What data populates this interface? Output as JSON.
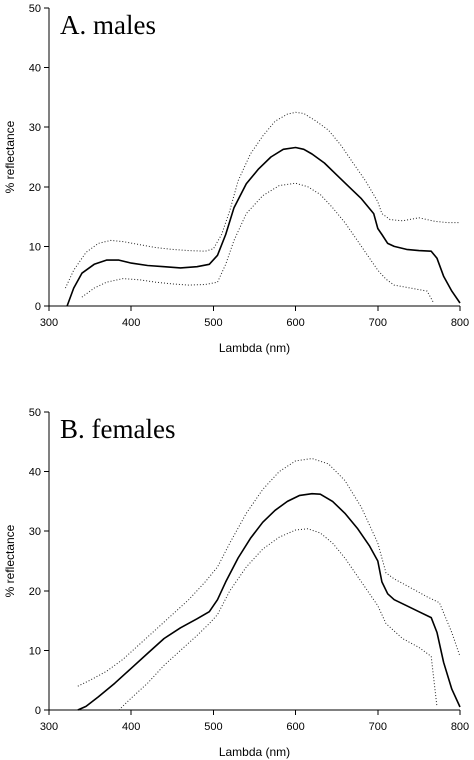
{
  "chart_data": [
    {
      "type": "line",
      "title": "A. males",
      "xlabel": "Lambda (nm)",
      "ylabel": "% reflectance",
      "xlim": [
        300,
        800
      ],
      "ylim": [
        0,
        50
      ],
      "xticks": [
        300,
        400,
        500,
        600,
        700,
        800
      ],
      "yticks": [
        0,
        10,
        20,
        30,
        40,
        50
      ],
      "grid": false,
      "legend": "none",
      "series": [
        {
          "role": "upper",
          "style": "dotted",
          "x": [
            320,
            330,
            345,
            360,
            375,
            390,
            410,
            430,
            450,
            470,
            490,
            500,
            510,
            520,
            530,
            545,
            560,
            575,
            590,
            600,
            610,
            625,
            640,
            655,
            670,
            685,
            700,
            705,
            715,
            730,
            750,
            770,
            785,
            800
          ],
          "y": [
            3,
            6,
            9,
            10.5,
            11,
            10.8,
            10.3,
            9.8,
            9.5,
            9.3,
            9.2,
            9.6,
            12,
            16,
            21,
            25.5,
            28.5,
            31,
            32.2,
            32.5,
            32.3,
            31,
            29.5,
            27,
            24,
            21,
            17.5,
            15.5,
            14.5,
            14.3,
            14.8,
            14.2,
            14,
            14
          ]
        },
        {
          "role": "mean",
          "style": "solid",
          "x": [
            322,
            330,
            340,
            355,
            370,
            385,
            400,
            420,
            440,
            460,
            480,
            495,
            505,
            515,
            525,
            540,
            555,
            570,
            585,
            600,
            610,
            620,
            635,
            650,
            665,
            680,
            695,
            700,
            705,
            712,
            720,
            735,
            750,
            765,
            772,
            780,
            790,
            800
          ],
          "y": [
            0,
            3,
            5.5,
            7,
            7.7,
            7.7,
            7.2,
            6.8,
            6.6,
            6.4,
            6.6,
            7,
            8.5,
            12,
            16.5,
            20.5,
            23,
            25,
            26.3,
            26.6,
            26.3,
            25.5,
            24,
            22,
            20,
            18,
            15.5,
            13,
            12,
            10.5,
            10,
            9.5,
            9.3,
            9.2,
            8,
            5,
            2.5,
            0.5
          ]
        },
        {
          "role": "lower",
          "style": "dotted",
          "x": [
            340,
            355,
            370,
            390,
            410,
            430,
            450,
            470,
            490,
            505,
            515,
            525,
            540,
            560,
            580,
            600,
            615,
            630,
            645,
            660,
            675,
            690,
            700,
            710,
            720,
            740,
            760,
            768
          ],
          "y": [
            1.5,
            3,
            4,
            4.6,
            4.4,
            4,
            3.7,
            3.5,
            3.6,
            4,
            7,
            11,
            15.5,
            18.5,
            20.2,
            20.6,
            20,
            18.7,
            16.5,
            14,
            11,
            8,
            6,
            4.5,
            3.5,
            3,
            2.5,
            0.5
          ]
        }
      ]
    },
    {
      "type": "line",
      "title": "B. females",
      "xlabel": "Lambda (nm)",
      "ylabel": "% reflectance",
      "xlim": [
        300,
        800
      ],
      "ylim": [
        0,
        50
      ],
      "xticks": [
        300,
        400,
        500,
        600,
        700,
        800
      ],
      "yticks": [
        0,
        10,
        20,
        30,
        40,
        50
      ],
      "grid": false,
      "legend": "none",
      "series": [
        {
          "role": "upper",
          "style": "dotted",
          "x": [
            335,
            350,
            370,
            390,
            410,
            430,
            450,
            470,
            490,
            505,
            520,
            540,
            560,
            580,
            600,
            620,
            640,
            660,
            680,
            700,
            710,
            720,
            740,
            760,
            775,
            790,
            800
          ],
          "y": [
            4,
            5,
            6.5,
            8.5,
            11,
            13.5,
            16,
            18.5,
            21.5,
            24,
            28,
            33,
            37,
            40,
            41.8,
            42.2,
            41.3,
            38.5,
            34,
            28,
            23,
            22,
            20.5,
            19,
            18,
            13,
            9
          ]
        },
        {
          "role": "mean",
          "style": "solid",
          "x": [
            335,
            345,
            360,
            380,
            400,
            420,
            440,
            460,
            480,
            495,
            505,
            515,
            530,
            545,
            560,
            575,
            590,
            605,
            620,
            630,
            645,
            660,
            675,
            690,
            700,
            705,
            712,
            720,
            735,
            750,
            765,
            772,
            780,
            790,
            800
          ],
          "y": [
            0,
            0.6,
            2.2,
            4.5,
            7,
            9.5,
            12,
            13.8,
            15.3,
            16.5,
            18.5,
            21.5,
            25.5,
            28.8,
            31.5,
            33.5,
            35,
            36,
            36.3,
            36.2,
            35,
            33,
            30.5,
            27.5,
            25,
            21.5,
            19.5,
            18.5,
            17.5,
            16.5,
            15.5,
            13,
            8,
            3.5,
            0.5
          ]
        },
        {
          "role": "lower",
          "style": "dotted",
          "x": [
            385,
            400,
            420,
            440,
            460,
            480,
            495,
            505,
            520,
            540,
            560,
            580,
            600,
            615,
            630,
            645,
            660,
            680,
            700,
            710,
            730,
            750,
            765,
            772
          ],
          "y": [
            0,
            2,
            4.5,
            7.5,
            10,
            12.5,
            14.5,
            16,
            20,
            24,
            27,
            29,
            30.2,
            30.4,
            29.7,
            28,
            25.5,
            21.5,
            17.5,
            14.5,
            12,
            10.5,
            9,
            0.5
          ]
        }
      ]
    }
  ]
}
